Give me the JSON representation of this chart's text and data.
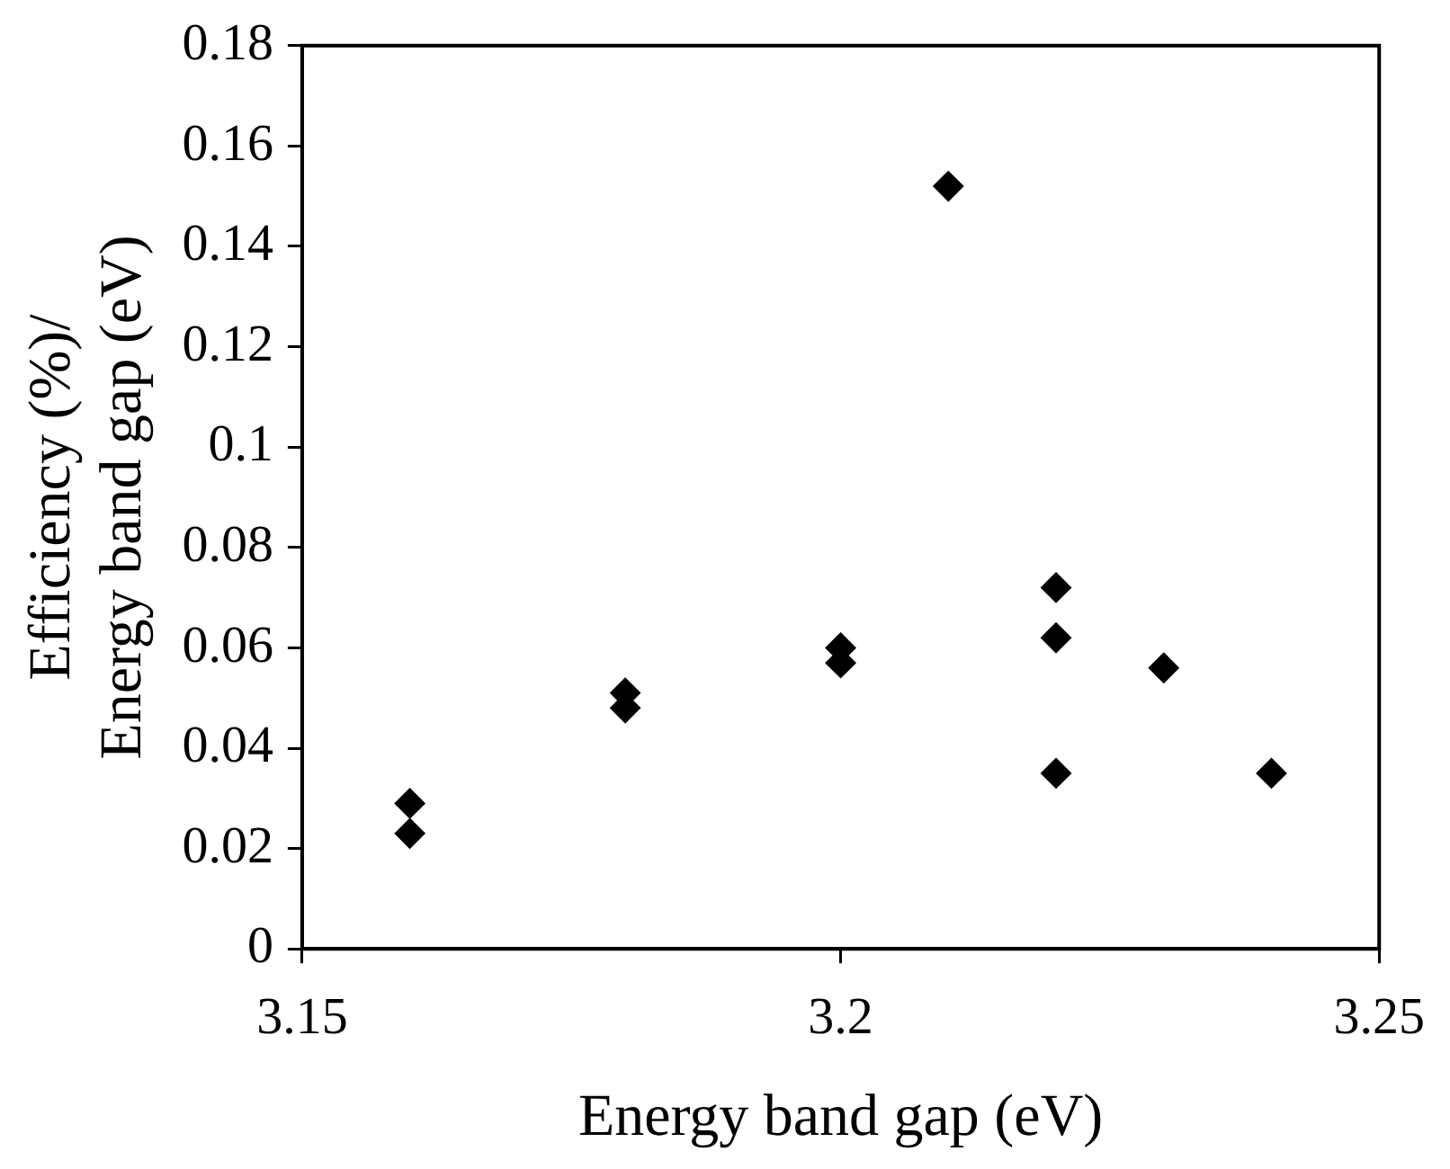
{
  "chart_data": {
    "type": "scatter",
    "xlabel": "Energy band gap (eV)",
    "ylabel": "Efficiency (%)/\nEnergy band gap (eV)",
    "x": [
      3.16,
      3.16,
      3.18,
      3.18,
      3.2,
      3.2,
      3.21,
      3.22,
      3.22,
      3.22,
      3.23,
      3.24
    ],
    "values": [
      0.029,
      0.023,
      0.051,
      0.048,
      0.06,
      0.057,
      0.152,
      0.072,
      0.062,
      0.035,
      0.056,
      0.035
    ],
    "color": "#000000",
    "marker": "diamond",
    "xlim": [
      3.15,
      3.25
    ],
    "xticks": [
      3.15,
      3.2,
      3.25
    ],
    "ylim": [
      0,
      0.18
    ],
    "yticks": [
      0,
      0.02,
      0.04,
      0.06,
      0.08,
      0.1,
      0.12,
      0.14,
      0.16,
      0.18
    ],
    "grid": false,
    "legend": false
  }
}
